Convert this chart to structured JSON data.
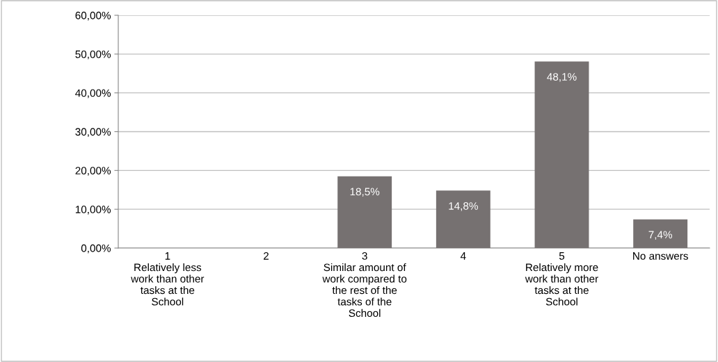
{
  "chart_data": {
    "type": "bar",
    "categories": [
      "1\nRelatively less\nwork than other\ntasks at the\nSchool",
      "2",
      "3\nSimilar amount of\nwork compared to\nthe rest of the\ntasks of the\nSchool",
      "4",
      "5\nRelatively more\nwork than other\ntasks at the\nSchool",
      "No answers"
    ],
    "values": [
      0,
      0,
      18.5,
      14.8,
      48.1,
      7.4
    ],
    "value_labels": [
      null,
      null,
      "18,5%",
      "14,8%",
      "48,1%",
      "7,4%"
    ],
    "color": "#767171",
    "ylim": [
      0,
      60
    ],
    "yticks": [
      {
        "value": 0,
        "label": "0,00%"
      },
      {
        "value": 10,
        "label": "10,00%"
      },
      {
        "value": 20,
        "label": "20,00%"
      },
      {
        "value": 30,
        "label": "30,00%"
      },
      {
        "value": 40,
        "label": "40,00%"
      },
      {
        "value": 50,
        "label": "50,00%"
      },
      {
        "value": 60,
        "label": "60,00%"
      }
    ],
    "grid": "y"
  }
}
